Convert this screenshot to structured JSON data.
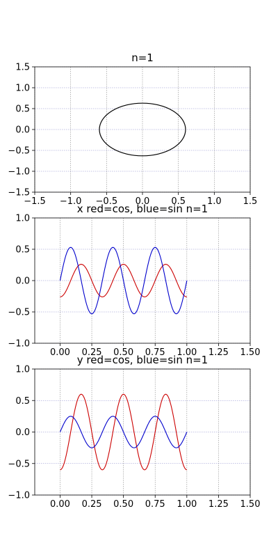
{
  "chart_data": [
    {
      "type": "line",
      "title": "n=1",
      "xlabel": "",
      "ylabel": "",
      "xlim": [
        -1.5,
        1.5
      ],
      "ylim": [
        -1.5,
        1.5
      ],
      "xticks": [
        -1.5,
        -1.0,
        -0.5,
        0.0,
        0.5,
        1.0,
        1.5
      ],
      "yticks": [
        -1.5,
        -1.0,
        -0.5,
        0.0,
        0.5,
        1.0,
        1.5
      ],
      "xtick_labels": [
        "−1.5",
        "−1.0",
        "−0.5",
        "0.0",
        "0.5",
        "1.0",
        "1.5"
      ],
      "ytick_labels": [
        "−1.5",
        "−1.0",
        "−0.5",
        "0.0",
        "0.5",
        "1.0",
        "1.5"
      ],
      "grid": true,
      "series": [
        {
          "color": "#000000",
          "shape": "ellipse",
          "center": [
            0.0,
            0.0
          ],
          "rx": 0.6,
          "ry": 0.63
        }
      ]
    },
    {
      "type": "line",
      "title": "x red=cos, blue=sin n=1",
      "xlabel": "",
      "ylabel": "",
      "xlim": [
        -0.2,
        1.5
      ],
      "ylim": [
        -1.0,
        1.0
      ],
      "xticks": [
        0.0,
        0.25,
        0.5,
        0.75,
        1.0,
        1.25,
        1.5
      ],
      "yticks": [
        -1.0,
        -0.5,
        0.0,
        0.5,
        1.0
      ],
      "xtick_labels": [
        "0.00",
        "0.25",
        "0.50",
        "0.75",
        "1.00",
        "1.25",
        "1.50"
      ],
      "ytick_labels": [
        "−1.0",
        "−0.5",
        "0.0",
        "0.5",
        "1.0"
      ],
      "grid": true,
      "series": [
        {
          "color": "#cc0000",
          "func": "cos",
          "amplitude": -0.26,
          "frequency": 3,
          "x_range": [
            0,
            1
          ]
        },
        {
          "color": "#0000cc",
          "func": "sin",
          "amplitude": 0.53,
          "frequency": 3,
          "x_range": [
            0,
            1
          ]
        }
      ]
    },
    {
      "type": "line",
      "title": "y red=cos, blue=sin n=1",
      "xlabel": "",
      "ylabel": "",
      "xlim": [
        -0.2,
        1.5
      ],
      "ylim": [
        -1.0,
        1.0
      ],
      "xticks": [
        0.0,
        0.25,
        0.5,
        0.75,
        1.0,
        1.25,
        1.5
      ],
      "yticks": [
        -1.0,
        -0.5,
        0.0,
        0.5,
        1.0
      ],
      "xtick_labels": [
        "0.00",
        "0.25",
        "0.50",
        "0.75",
        "1.00",
        "1.25",
        "1.50"
      ],
      "ytick_labels": [
        "−1.0",
        "−0.5",
        "0.0",
        "0.5",
        "1.0"
      ],
      "grid": true,
      "series": [
        {
          "color": "#cc0000",
          "func": "cos",
          "amplitude": -0.6,
          "frequency": 3,
          "x_range": [
            0,
            1
          ]
        },
        {
          "color": "#0000cc",
          "func": "sin",
          "amplitude": 0.25,
          "frequency": 3,
          "x_range": [
            0,
            1
          ]
        }
      ]
    }
  ]
}
